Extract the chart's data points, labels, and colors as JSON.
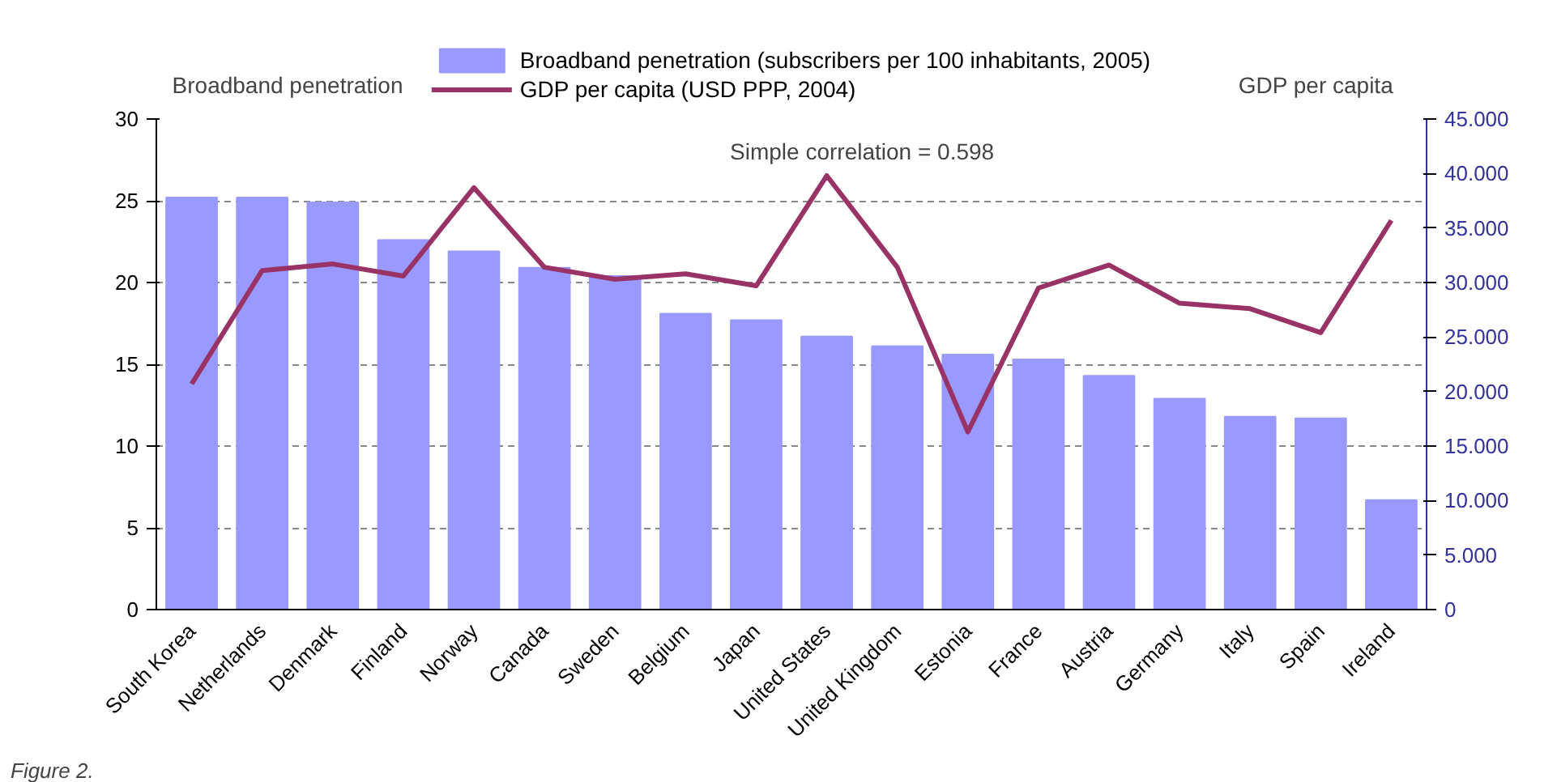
{
  "chart_data": {
    "type": "bar",
    "ylabel": "Broadband penetration",
    "y2label": "GDP per capita",
    "categories": [
      "South Korea",
      "Netherlands",
      "Denmark",
      "Finland",
      "Norway",
      "Canada",
      "Sweden",
      "Belgium",
      "Japan",
      "United States",
      "United Kingdom",
      "Estonia",
      "France",
      "Austria",
      "Germany",
      "Italy",
      "Spain",
      "Ireland"
    ],
    "series": [
      {
        "name": "Broadband penetration (subscribers per 100 inhabitants, 2005)",
        "color": "#9999ff",
        "values": [
          25.2,
          25.2,
          24.9,
          22.6,
          21.9,
          20.9,
          20.4,
          18.1,
          17.7,
          16.7,
          16.1,
          15.6,
          15.3,
          14.3,
          12.9,
          11.8,
          11.7,
          6.7
        ]
      },
      {
        "name": "GDP per capita (USD PPP, 2004)",
        "color": "#993366",
        "type": "line",
        "axis": "y2",
        "values": [
          20.7,
          31.1,
          31.7,
          30.6,
          38.7,
          31.4,
          30.3,
          30.8,
          29.7,
          39.8,
          31.4,
          16.3,
          29.5,
          31.6,
          28.1,
          27.6,
          25.4,
          35.7
        ]
      }
    ],
    "ylim": [
      0,
      30
    ],
    "yticks": [
      0,
      5,
      10,
      15,
      20,
      25,
      30
    ],
    "y2lim": [
      0,
      45
    ],
    "y2ticks": [
      0,
      {
        "value": 5,
        "label": "5.000"
      },
      {
        "value": 10,
        "label": "10.000"
      },
      {
        "value": 15,
        "label": "15.000"
      },
      {
        "value": 20,
        "label": "20.000"
      },
      {
        "value": 25,
        "label": "25.000"
      },
      {
        "value": 30,
        "label": "30.000"
      },
      {
        "value": 35,
        "label": "35.000"
      },
      {
        "value": 40,
        "label": "40.000"
      },
      {
        "value": 45,
        "label": "45.000"
      }
    ],
    "grid": "y",
    "legend": "top",
    "line_style": "solid",
    "annotations": [
      "Simple correlation = 0.598",
      "Figure 2."
    ]
  }
}
